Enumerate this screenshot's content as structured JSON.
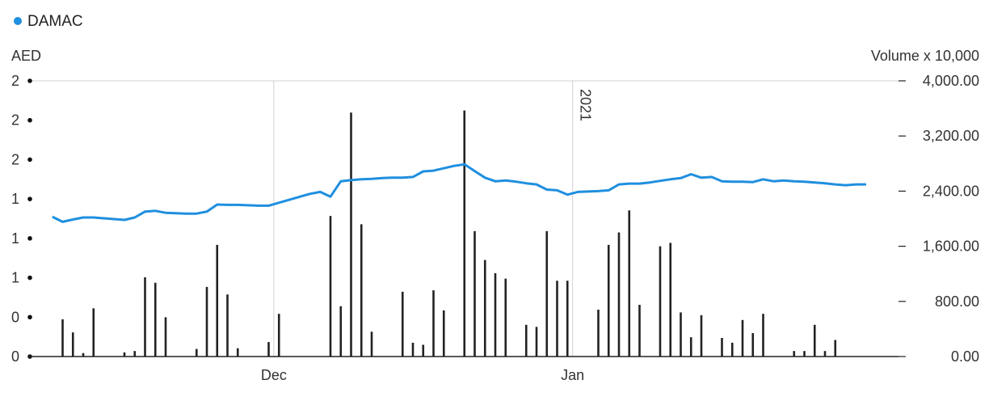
{
  "chart_data": {
    "type": "line+bar",
    "legend": [
      {
        "label": "DAMAC",
        "color": "#1f8fdf"
      }
    ],
    "left_axis": {
      "title": "AED",
      "tick_labels": [
        "2",
        "2",
        "2",
        "1",
        "1",
        "1",
        "0",
        "0"
      ],
      "range": [
        0,
        7
      ]
    },
    "right_axis": {
      "title": "Volume x 10,000",
      "tick_labels": [
        "4,000.00",
        "3,200.00",
        "2,400.00",
        "1,600.00",
        "800.00",
        "0.00"
      ],
      "range": [
        0,
        4000
      ]
    },
    "x_axis": {
      "domain": [
        0,
        80
      ],
      "tick_labels": [
        {
          "label": "Dec",
          "x": 22.5
        },
        {
          "label": "Jan",
          "x": 51.5
        }
      ],
      "annotation": {
        "label": "2021",
        "x": 51.5
      }
    },
    "price_series": {
      "name": "DAMAC",
      "color": "#1f8fdf",
      "points": [
        [
          1,
          3.55
        ],
        [
          2,
          3.42
        ],
        [
          3,
          3.48
        ],
        [
          4,
          3.53
        ],
        [
          5,
          3.53
        ],
        [
          6,
          3.51
        ],
        [
          7,
          3.49
        ],
        [
          8,
          3.47
        ],
        [
          9,
          3.53
        ],
        [
          10,
          3.68
        ],
        [
          11,
          3.7
        ],
        [
          12,
          3.65
        ],
        [
          13,
          3.64
        ],
        [
          14,
          3.63
        ],
        [
          15,
          3.63
        ],
        [
          16,
          3.68
        ],
        [
          17,
          3.86
        ],
        [
          18,
          3.85
        ],
        [
          19,
          3.85
        ],
        [
          20,
          3.84
        ],
        [
          21,
          3.83
        ],
        [
          22,
          3.83
        ],
        [
          26,
          4.13
        ],
        [
          27,
          4.18
        ],
        [
          28,
          4.06
        ],
        [
          29,
          4.45
        ],
        [
          30,
          4.48
        ],
        [
          31,
          4.5
        ],
        [
          32,
          4.51
        ],
        [
          33,
          4.53
        ],
        [
          34,
          4.54
        ],
        [
          35,
          4.54
        ],
        [
          36,
          4.56
        ],
        [
          37,
          4.7
        ],
        [
          38,
          4.72
        ],
        [
          40,
          4.84
        ],
        [
          41,
          4.88
        ],
        [
          42,
          4.71
        ],
        [
          43,
          4.54
        ],
        [
          44,
          4.45
        ],
        [
          45,
          4.47
        ],
        [
          46,
          4.44
        ],
        [
          47,
          4.4
        ],
        [
          48,
          4.37
        ],
        [
          49,
          4.24
        ],
        [
          50,
          4.22
        ],
        [
          51,
          4.11
        ],
        [
          52,
          4.18
        ],
        [
          54,
          4.2
        ],
        [
          55,
          4.22
        ],
        [
          56,
          4.37
        ],
        [
          57,
          4.39
        ],
        [
          58,
          4.39
        ],
        [
          59,
          4.42
        ],
        [
          60,
          4.46
        ],
        [
          61,
          4.5
        ],
        [
          62,
          4.53
        ],
        [
          63,
          4.63
        ],
        [
          64,
          4.54
        ],
        [
          65,
          4.56
        ],
        [
          66,
          4.45
        ],
        [
          67,
          4.44
        ],
        [
          68,
          4.44
        ],
        [
          69,
          4.43
        ],
        [
          70,
          4.5
        ],
        [
          71,
          4.45
        ],
        [
          72,
          4.47
        ],
        [
          73,
          4.45
        ],
        [
          74,
          4.44
        ],
        [
          75,
          4.42
        ],
        [
          76,
          4.4
        ],
        [
          77,
          4.37
        ],
        [
          78,
          4.35
        ],
        [
          79,
          4.37
        ],
        [
          80,
          4.37
        ]
      ]
    },
    "volume_series": {
      "name": "Volume",
      "color": "#222222",
      "points": [
        [
          2,
          540
        ],
        [
          3,
          350
        ],
        [
          4,
          50
        ],
        [
          5,
          700
        ],
        [
          8,
          60
        ],
        [
          9,
          80
        ],
        [
          10,
          1150
        ],
        [
          11,
          1070
        ],
        [
          12,
          570
        ],
        [
          15,
          110
        ],
        [
          16,
          1010
        ],
        [
          17,
          1620
        ],
        [
          18,
          900
        ],
        [
          19,
          120
        ],
        [
          22,
          210
        ],
        [
          23,
          620
        ],
        [
          28,
          2040
        ],
        [
          29,
          730
        ],
        [
          30,
          3540
        ],
        [
          31,
          1920
        ],
        [
          32,
          360
        ],
        [
          35,
          940
        ],
        [
          36,
          200
        ],
        [
          37,
          170
        ],
        [
          38,
          960
        ],
        [
          39,
          670
        ],
        [
          41,
          3570
        ],
        [
          42,
          1820
        ],
        [
          43,
          1400
        ],
        [
          44,
          1210
        ],
        [
          45,
          1130
        ],
        [
          47,
          460
        ],
        [
          48,
          430
        ],
        [
          49,
          1820
        ],
        [
          50,
          1100
        ],
        [
          51,
          1100
        ],
        [
          54,
          680
        ],
        [
          55,
          1620
        ],
        [
          56,
          1800
        ],
        [
          57,
          2120
        ],
        [
          58,
          750
        ],
        [
          60,
          1600
        ],
        [
          61,
          1650
        ],
        [
          62,
          640
        ],
        [
          63,
          280
        ],
        [
          64,
          600
        ],
        [
          66,
          270
        ],
        [
          67,
          200
        ],
        [
          68,
          530
        ],
        [
          69,
          340
        ],
        [
          70,
          620
        ],
        [
          73,
          80
        ],
        [
          74,
          80
        ],
        [
          75,
          460
        ],
        [
          76,
          80
        ],
        [
          77,
          240
        ]
      ]
    }
  }
}
